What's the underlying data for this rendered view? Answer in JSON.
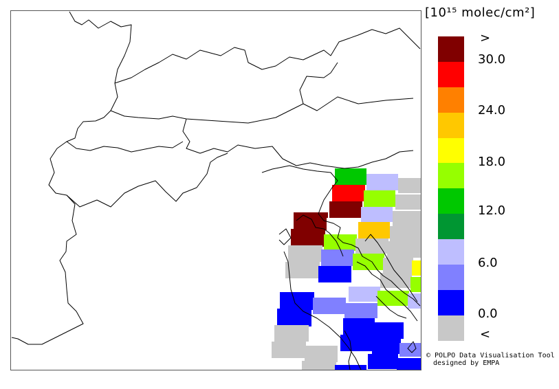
{
  "unit_label": "[10¹⁵ molec/cm²]",
  "legend": {
    "colors": [
      "#800000",
      "#ff0000",
      "#ff8000",
      "#ffc800",
      "#ffff00",
      "#96ff00",
      "#00c800",
      "#009632",
      "#bebeff",
      "#8080ff",
      "#0000ff",
      "#c8c8c8"
    ],
    "ticks": [
      {
        "label": ">"
      },
      {
        "label": "30.0"
      },
      {
        "label": "24.0"
      },
      {
        "label": "18.0"
      },
      {
        "label": "12.0"
      },
      {
        "label": "6.0"
      },
      {
        "label": "0.0"
      },
      {
        "label": "<"
      }
    ]
  },
  "credit": {
    "line1": "© POLPO Data Visualisation Tool",
    "line2": "designed by EMPA"
  }
}
